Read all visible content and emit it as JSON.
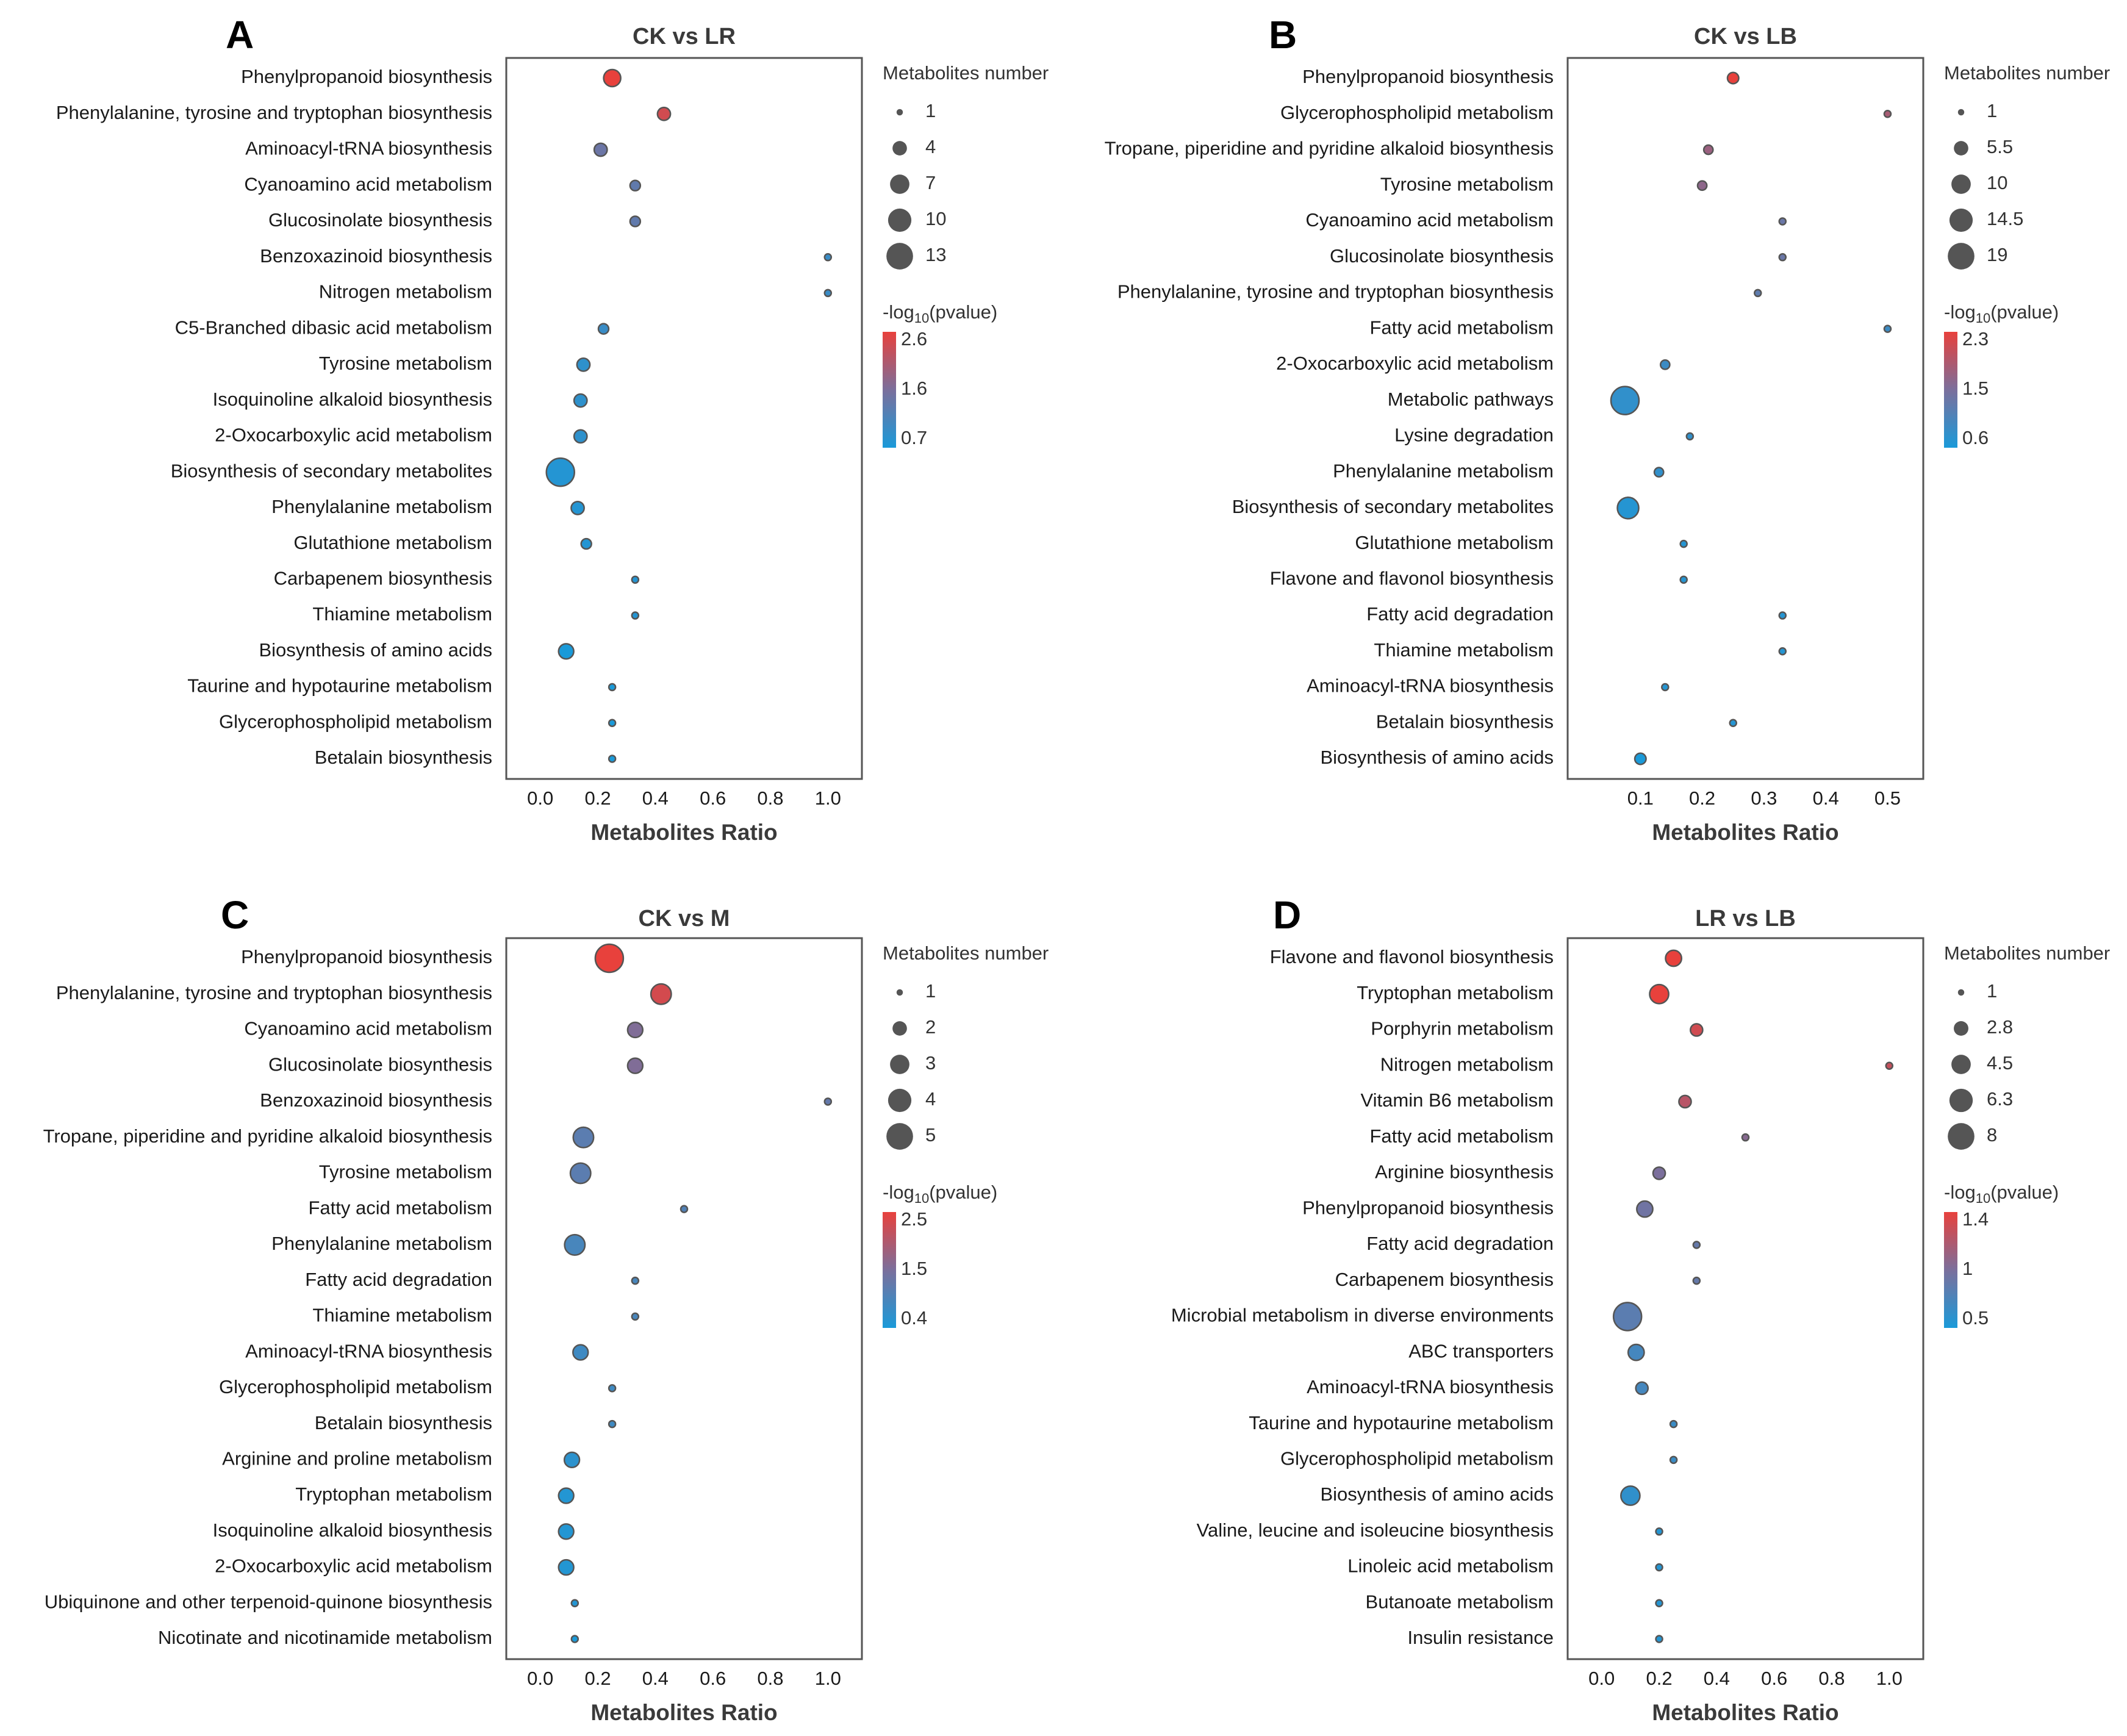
{
  "chart_data": [
    {
      "type": "scatter",
      "panel": "A",
      "title": "CK vs LR",
      "xlabel": "Metabolites Ratio",
      "xlim": [
        -0.08,
        1.08
      ],
      "xticks": [
        "0.0",
        "0.2",
        "0.4",
        "0.6",
        "0.8",
        "1.0"
      ],
      "size_legend_title": "Metabolites number",
      "size_legend": [
        "1",
        "4",
        "7",
        "10",
        "13"
      ],
      "size_range": [
        1,
        13
      ],
      "color_legend_title": "-log",
      "color_legend_sub": "10",
      "color_legend_suffix": "(pvalue)",
      "color_legend": [
        "2.6",
        "1.6",
        "0.7"
      ],
      "color_range": [
        0.7,
        2.6
      ],
      "categories": [
        "Phenylpropanoid biosynthesis",
        "Phenylalanine, tyrosine and tryptophan biosynthesis",
        "Aminoacyl-tRNA biosynthesis",
        "Cyanoamino acid metabolism",
        "Glucosinolate biosynthesis",
        "Benzoxazinoid biosynthesis",
        "Nitrogen metabolism",
        "C5-Branched dibasic acid metabolism",
        "Tyrosine metabolism",
        "Isoquinoline alkaloid biosynthesis",
        "2-Oxocarboxylic acid metabolism",
        "Biosynthesis of secondary metabolites",
        "Phenylalanine metabolism",
        "Glutathione metabolism",
        "Carbapenem biosynthesis",
        "Thiamine metabolism",
        "Biosynthesis of amino acids",
        "Taurine and hypotaurine metabolism",
        "Glycerophospholipid metabolism",
        "Betalain biosynthesis"
      ],
      "x": [
        0.25,
        0.43,
        0.21,
        0.33,
        0.33,
        1.0,
        1.0,
        0.22,
        0.15,
        0.14,
        0.14,
        0.07,
        0.13,
        0.16,
        0.33,
        0.33,
        0.09,
        0.25,
        0.25,
        0.25
      ],
      "size": [
        5,
        3,
        3,
        2,
        2,
        1,
        1,
        2,
        3,
        3,
        3,
        13,
        3,
        2,
        1,
        1,
        4,
        1,
        1,
        1
      ],
      "pvalue": [
        2.6,
        2.4,
        1.5,
        1.4,
        1.4,
        1.0,
        1.0,
        1.0,
        0.9,
        0.9,
        0.9,
        0.8,
        0.8,
        0.8,
        0.8,
        0.8,
        0.7,
        0.7,
        0.7,
        0.7
      ]
    },
    {
      "type": "scatter",
      "panel": "B",
      "title": "CK vs LB",
      "xlabel": "Metabolites Ratio",
      "xlim": [
        0.0,
        0.54
      ],
      "xticks": [
        "0.1",
        "0.2",
        "0.3",
        "0.4",
        "0.5"
      ],
      "size_legend_title": "Metabolites number",
      "size_legend": [
        "1",
        "5.5",
        "10",
        "14.5",
        "19"
      ],
      "size_range": [
        1,
        19
      ],
      "color_legend_title": "-log",
      "color_legend_sub": "10",
      "color_legend_suffix": "(pvalue)",
      "color_legend": [
        "2.3",
        "1.5",
        "0.6"
      ],
      "color_range": [
        0.6,
        2.3
      ],
      "categories": [
        "Phenylpropanoid biosynthesis",
        "Glycerophospholipid metabolism",
        "Tropane, piperidine and pyridine alkaloid biosynthesis",
        "Tyrosine metabolism",
        "Cyanoamino acid metabolism",
        "Glucosinolate biosynthesis",
        "Phenylalanine, tyrosine and tryptophan biosynthesis",
        "Fatty acid metabolism",
        "2-Oxocarboxylic acid metabolism",
        "Metabolic pathways",
        "Lysine degradation",
        "Phenylalanine metabolism",
        "Biosynthesis of secondary metabolites",
        "Glutathione metabolism",
        "Flavone and flavonol biosynthesis",
        "Fatty acid degradation",
        "Thiamine metabolism",
        "Aminoacyl-tRNA biosynthesis",
        "Betalain biosynthesis",
        "Biosynthesis of amino acids"
      ],
      "x": [
        0.25,
        0.5,
        0.21,
        0.2,
        0.33,
        0.33,
        0.29,
        0.5,
        0.14,
        0.075,
        0.18,
        0.13,
        0.08,
        0.17,
        0.17,
        0.33,
        0.33,
        0.14,
        0.25,
        0.1
      ],
      "size": [
        3,
        1,
        2,
        2,
        1,
        1,
        1,
        1,
        2,
        19,
        1,
        2,
        11,
        1,
        1,
        1,
        1,
        1,
        1,
        3
      ],
      "pvalue": [
        2.3,
        1.8,
        1.7,
        1.6,
        1.3,
        1.3,
        1.2,
        0.9,
        0.9,
        0.8,
        0.8,
        0.8,
        0.7,
        0.7,
        0.7,
        0.7,
        0.7,
        0.7,
        0.7,
        0.6
      ]
    },
    {
      "type": "scatter",
      "panel": "C",
      "title": "CK vs M",
      "xlabel": "Metabolites Ratio",
      "xlim": [
        -0.08,
        1.08
      ],
      "xticks": [
        "0.0",
        "0.2",
        "0.4",
        "0.6",
        "0.8",
        "1.0"
      ],
      "size_legend_title": "Metabolites number",
      "size_legend": [
        "1",
        "2",
        "3",
        "4",
        "5"
      ],
      "size_range": [
        1,
        5
      ],
      "color_legend_title": "-log",
      "color_legend_sub": "10",
      "color_legend_suffix": "(pvalue)",
      "color_legend": [
        "2.5",
        "1.5",
        "0.4"
      ],
      "color_range": [
        0.4,
        2.5
      ],
      "categories": [
        "Phenylpropanoid biosynthesis",
        "Phenylalanine, tyrosine and tryptophan biosynthesis",
        "Cyanoamino acid metabolism",
        "Glucosinolate biosynthesis",
        "Benzoxazinoid biosynthesis",
        "Tropane, piperidine and pyridine alkaloid biosynthesis",
        "Tyrosine metabolism",
        "Fatty acid metabolism",
        "Phenylalanine metabolism",
        "Fatty acid degradation",
        "Thiamine metabolism",
        "Aminoacyl-tRNA biosynthesis",
        "Glycerophospholipid metabolism",
        "Betalain biosynthesis",
        "Arginine and proline metabolism",
        "Tryptophan metabolism",
        "Isoquinoline alkaloid biosynthesis",
        "2-Oxocarboxylic acid metabolism",
        "Ubiquinone and other terpenoid-quinone biosynthesis",
        "Nicotinate and nicotinamide metabolism"
      ],
      "x": [
        0.24,
        0.42,
        0.33,
        0.33,
        1.0,
        0.15,
        0.14,
        0.5,
        0.12,
        0.33,
        0.33,
        0.14,
        0.25,
        0.25,
        0.11,
        0.09,
        0.09,
        0.09,
        0.12,
        0.12
      ],
      "size": [
        5,
        3,
        2,
        2,
        1,
        3,
        3,
        1,
        3,
        1,
        1,
        2,
        1,
        1,
        2,
        2,
        2,
        2,
        1,
        1
      ],
      "pvalue": [
        2.5,
        2.3,
        1.5,
        1.5,
        1.2,
        1.1,
        1.1,
        1.0,
        0.9,
        0.9,
        0.9,
        0.8,
        0.8,
        0.8,
        0.6,
        0.5,
        0.5,
        0.5,
        0.5,
        0.4
      ]
    },
    {
      "type": "scatter",
      "panel": "D",
      "title": "LR vs LB",
      "xlabel": "Metabolites Ratio",
      "xlim": [
        -0.08,
        1.08
      ],
      "xticks": [
        "0.0",
        "0.2",
        "0.4",
        "0.6",
        "0.8",
        "1.0"
      ],
      "size_legend_title": "Metabolites number",
      "size_legend": [
        "1",
        "2.8",
        "4.5",
        "6.3",
        "8"
      ],
      "size_range": [
        1,
        8
      ],
      "color_legend_title": "-log",
      "color_legend_sub": "10",
      "color_legend_suffix": "(pvalue)",
      "color_legend": [
        "1.4",
        "1",
        "0.5"
      ],
      "color_range": [
        0.5,
        1.4
      ],
      "categories": [
        "Flavone and flavonol biosynthesis",
        "Tryptophan metabolism",
        "Porphyrin metabolism",
        "Nitrogen metabolism",
        "Vitamin B6 metabolism",
        "Fatty acid metabolism",
        "Arginine biosynthesis",
        "Phenylpropanoid biosynthesis",
        "Fatty acid degradation",
        "Carbapenem biosynthesis",
        "Microbial metabolism in diverse environments",
        "ABC transporters",
        "Aminoacyl-tRNA biosynthesis",
        "Taurine and hypotaurine metabolism",
        "Glycerophospholipid metabolism",
        "Biosynthesis of amino acids",
        "Valine, leucine and isoleucine biosynthesis",
        "Linoleic acid metabolism",
        "Butanoate metabolism",
        "Insulin resistance"
      ],
      "x": [
        0.25,
        0.2,
        0.33,
        1.0,
        0.29,
        0.5,
        0.2,
        0.15,
        0.33,
        0.33,
        0.09,
        0.12,
        0.14,
        0.25,
        0.25,
        0.1,
        0.2,
        0.2,
        0.2,
        0.2
      ],
      "size": [
        3,
        4,
        2,
        1,
        2,
        1,
        2,
        3,
        1,
        1,
        8,
        3,
        2,
        1,
        1,
        4,
        1,
        1,
        1,
        1
      ],
      "pvalue": [
        1.4,
        1.4,
        1.3,
        1.25,
        1.2,
        1.0,
        0.95,
        0.9,
        0.85,
        0.85,
        0.8,
        0.7,
        0.7,
        0.65,
        0.65,
        0.6,
        0.55,
        0.55,
        0.55,
        0.55
      ]
    }
  ],
  "colors": {
    "high": "#e8413c",
    "mid": "#7b6f9c",
    "low": "#1a9ad9",
    "frame": "#555555",
    "size_dot": "#555555"
  }
}
